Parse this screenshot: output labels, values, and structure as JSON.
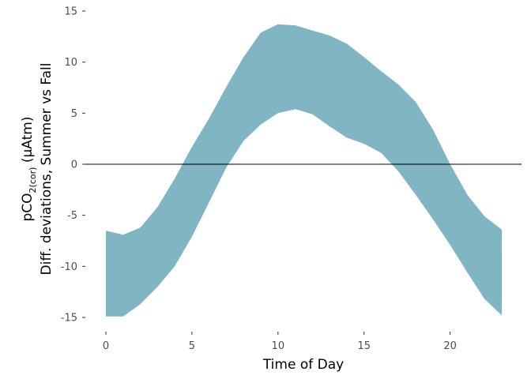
{
  "chart_data": {
    "type": "area",
    "title": "",
    "xlabel": "Time of Day",
    "ylabel": {
      "prefix": "pCO",
      "subscript": "2(cor)",
      "units": " (µAtm)",
      "line2": "Diff. deviations, Summer vs Fall"
    },
    "xlim": [
      0,
      23
    ],
    "ylim": [
      -15,
      15
    ],
    "x_ticks": [
      0,
      5,
      10,
      15,
      20
    ],
    "y_ticks": [
      -15,
      -10,
      -5,
      0,
      5,
      10,
      15
    ],
    "x_tick_labels": [
      "0",
      "5",
      "10",
      "15",
      "20"
    ],
    "y_tick_labels": [
      "-15",
      "-10",
      "-5",
      "0",
      "5",
      "10",
      "15"
    ],
    "reference_line": 0,
    "grid": false,
    "series": [
      {
        "name": "ribbon",
        "color": "#80b5c3",
        "x": [
          0,
          1,
          2,
          3,
          4,
          5,
          6,
          7,
          8,
          9,
          10,
          11,
          12,
          13,
          14,
          15,
          16,
          17,
          18,
          19,
          20,
          21,
          22,
          23
        ],
        "upper": [
          -6.5,
          -6.9,
          -6.2,
          -4.2,
          -1.4,
          1.7,
          4.5,
          7.6,
          10.5,
          12.9,
          13.7,
          13.6,
          13.1,
          12.6,
          11.8,
          10.5,
          9.1,
          7.8,
          6.1,
          3.4,
          0.0,
          -3.0,
          -5.1,
          -6.4
        ],
        "lower": [
          -14.9,
          -14.9,
          -13.7,
          -12.0,
          -10.0,
          -7.1,
          -3.7,
          -0.3,
          2.3,
          3.9,
          5.0,
          5.4,
          4.9,
          3.7,
          2.6,
          2.0,
          1.1,
          -0.7,
          -3.0,
          -5.4,
          -7.9,
          -10.6,
          -13.2,
          -14.8
        ]
      }
    ]
  }
}
